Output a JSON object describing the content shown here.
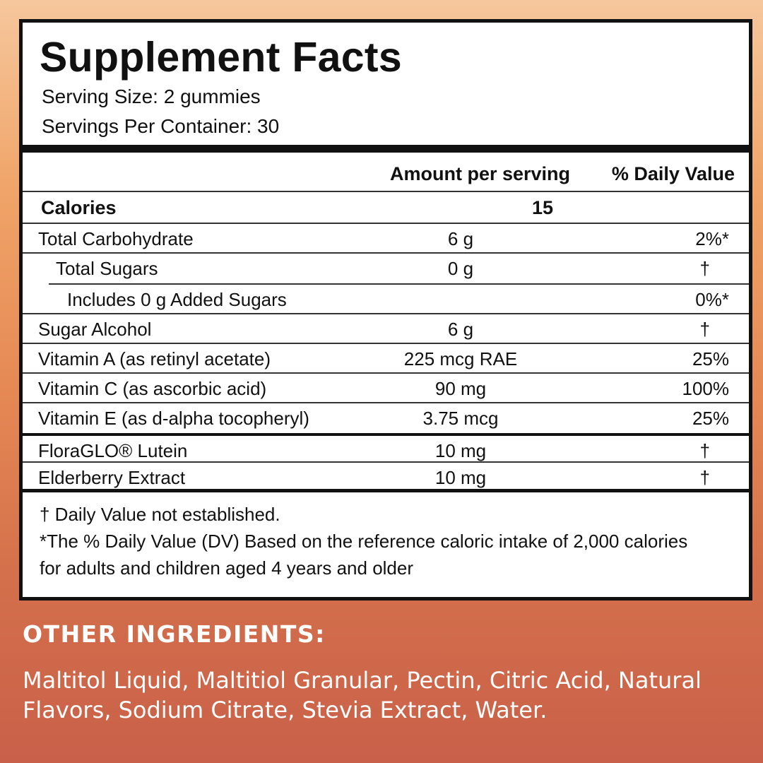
{
  "facts": {
    "title": "Supplement Facts",
    "serving_size": "Serving Size: 2 gummies",
    "servings_per_container": "Servings Per Container: 30",
    "col_amount": "Amount per serving",
    "col_dv": "% Daily Value",
    "calories": {
      "label": "Calories",
      "amount": "15"
    },
    "rows": [
      {
        "name": "Total Carbohydrate",
        "amount": "6 g",
        "dv": "2%*"
      },
      {
        "name": "Total Sugars",
        "amount": "0 g",
        "dv": "†"
      },
      {
        "name": "Includes 0 g Added Sugars",
        "amount": "",
        "dv": "0%*"
      },
      {
        "name": "Sugar Alcohol",
        "amount": "6 g",
        "dv": "†"
      },
      {
        "name": "Vitamin A (as retinyl acetate)",
        "amount": "225 mcg RAE",
        "dv": "25%"
      },
      {
        "name": "Vitamin C (as ascorbic acid)",
        "amount": "90 mg",
        "dv": "100%"
      },
      {
        "name": "Vitamin E (as d-alpha tocopheryl)",
        "amount": "3.75 mcg",
        "dv": "25%"
      },
      {
        "name": "FloraGLO® Lutein",
        "amount": "10 mg",
        "dv": "†"
      },
      {
        "name": "Elderberry Extract",
        "amount": "10 mg",
        "dv": "†"
      }
    ],
    "note_dagger": "† Daily Value not established.",
    "note_dv": "*The % Daily Value (DV) Based on the reference caloric intake of 2,000 calories for adults and children aged 4 years and older"
  },
  "other_ingredients": {
    "title": "OTHER INGREDIENTS:",
    "text": "Maltitol Liquid, Maltitiol Granular, Pectin, Citric Acid, Natural Flavors, Sodium Citrate, Stevia Extract, Water."
  },
  "colors": {
    "panel_border": "#111111",
    "background_top": "#f6c79d",
    "background_bottom": "#c9604a",
    "ingredients_text": "#ffffff"
  }
}
